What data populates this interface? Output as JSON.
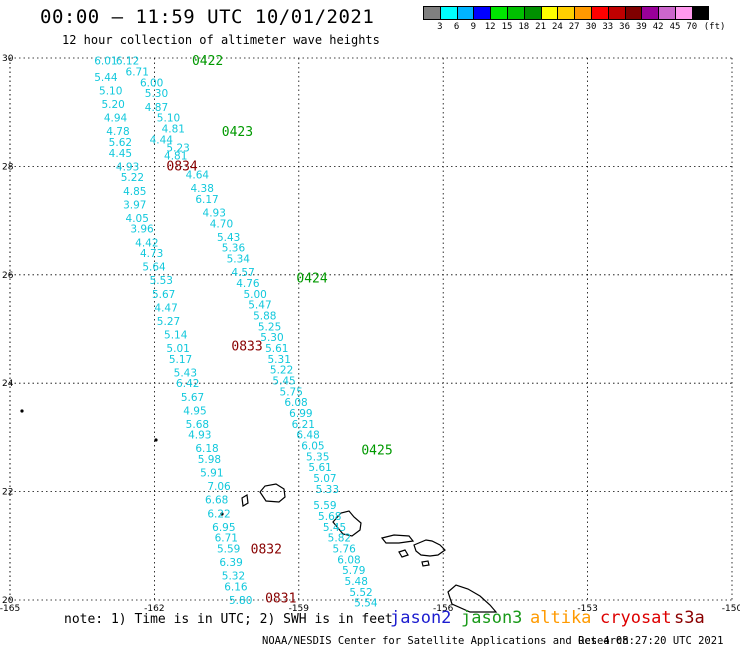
{
  "header": {
    "title": "00:00 – 11:59 UTC 10/01/2021",
    "subtitle": "12 hour collection of altimeter wave heights"
  },
  "colorbar": {
    "colors": [
      "#808080",
      "#00ffff",
      "#00b4ff",
      "#0000ff",
      "#00e600",
      "#00c000",
      "#009000",
      "#ffff00",
      "#ffd000",
      "#ff9900",
      "#ff0000",
      "#c00000",
      "#800000",
      "#990099",
      "#cc66cc",
      "#ff99ee",
      "#000000"
    ],
    "labels": [
      "3",
      "6",
      "9",
      "12",
      "15",
      "18",
      "21",
      "24",
      "27",
      "30",
      "33",
      "36",
      "39",
      "42",
      "45",
      "70",
      "(ft)"
    ]
  },
  "map": {
    "lat_labels": [
      "30",
      "28",
      "26",
      "24",
      "22",
      "20"
    ],
    "lon_labels": [
      "-165",
      "-162",
      "-159",
      "-156",
      "-153",
      "-150"
    ],
    "lat_range": [
      20,
      30
    ],
    "lon_range": [
      -165,
      -150
    ],
    "time_labels": [
      {
        "text": "0422",
        "lon": -161.22,
        "lat": 29.96,
        "color": "#009900"
      },
      {
        "text": "0423",
        "lon": -160.6,
        "lat": 28.65,
        "color": "#009900"
      },
      {
        "text": "0834",
        "lon": -161.75,
        "lat": 28.02,
        "color": "#880000"
      },
      {
        "text": "0424",
        "lon": -159.05,
        "lat": 25.95,
        "color": "#009900"
      },
      {
        "text": "0833",
        "lon": -160.4,
        "lat": 24.7,
        "color": "#880000"
      },
      {
        "text": "0425",
        "lon": -157.7,
        "lat": 22.78,
        "color": "#009900"
      },
      {
        "text": "0832",
        "lon": -160.0,
        "lat": 20.95,
        "color": "#880000"
      },
      {
        "text": "0831",
        "lon": -159.7,
        "lat": 20.05,
        "color": "#880000"
      }
    ],
    "track_0834": [
      {
        "v": "6.01",
        "lon": -163.25,
        "lat": 29.95
      },
      {
        "v": "6.12",
        "lon": -162.8,
        "lat": 29.95
      },
      {
        "v": "6.71",
        "lon": -162.6,
        "lat": 29.75
      },
      {
        "v": "5.44",
        "lon": -163.25,
        "lat": 29.65
      },
      {
        "v": "6.00",
        "lon": -162.3,
        "lat": 29.55
      },
      {
        "v": "5.10",
        "lon": -163.15,
        "lat": 29.4
      },
      {
        "v": "5.30",
        "lon": -162.2,
        "lat": 29.35
      },
      {
        "v": "5.20",
        "lon": -163.1,
        "lat": 29.15
      },
      {
        "v": "4.87",
        "lon": -162.2,
        "lat": 29.1
      },
      {
        "v": "4.94",
        "lon": -163.05,
        "lat": 28.9
      },
      {
        "v": "5.10",
        "lon": -161.95,
        "lat": 28.9
      },
      {
        "v": "4.78",
        "lon": -163.0,
        "lat": 28.65
      },
      {
        "v": "4.81",
        "lon": -161.85,
        "lat": 28.7
      },
      {
        "v": "4.44",
        "lon": -162.1,
        "lat": 28.5
      },
      {
        "v": "5.62",
        "lon": -162.95,
        "lat": 28.45
      },
      {
        "v": "5.23",
        "lon": -161.75,
        "lat": 28.35
      },
      {
        "v": "4.45",
        "lon": -162.95,
        "lat": 28.25
      },
      {
        "v": "4.81",
        "lon": -161.8,
        "lat": 28.2
      },
      {
        "v": "4.93",
        "lon": -162.8,
        "lat": 28.0
      },
      {
        "v": "5.22",
        "lon": -162.7,
        "lat": 27.8
      },
      {
        "v": "4.85",
        "lon": -162.65,
        "lat": 27.55
      },
      {
        "v": "3.97",
        "lon": -162.65,
        "lat": 27.3
      },
      {
        "v": "4.05",
        "lon": -162.6,
        "lat": 27.05
      },
      {
        "v": "3.96",
        "lon": -162.5,
        "lat": 26.85
      },
      {
        "v": "4.42",
        "lon": -162.4,
        "lat": 26.6
      },
      {
        "v": "4.73",
        "lon": -162.3,
        "lat": 26.4
      },
      {
        "v": "5.64",
        "lon": -162.25,
        "lat": 26.15
      },
      {
        "v": "5.53",
        "lon": -162.1,
        "lat": 25.9
      },
      {
        "v": "5.67",
        "lon": -162.05,
        "lat": 25.65
      },
      {
        "v": "4.47",
        "lon": -162.0,
        "lat": 25.4
      },
      {
        "v": "5.27",
        "lon": -161.95,
        "lat": 25.15
      },
      {
        "v": "5.14",
        "lon": -161.8,
        "lat": 24.9
      },
      {
        "v": "5.01",
        "lon": -161.75,
        "lat": 24.65
      },
      {
        "v": "5.17",
        "lon": -161.7,
        "lat": 24.45
      },
      {
        "v": "5.43",
        "lon": -161.6,
        "lat": 24.2
      },
      {
        "v": "6.42",
        "lon": -161.55,
        "lat": 24.0
      },
      {
        "v": "5.67",
        "lon": -161.45,
        "lat": 23.75
      },
      {
        "v": "4.95",
        "lon": -161.4,
        "lat": 23.5
      },
      {
        "v": "5.68",
        "lon": -161.35,
        "lat": 23.25
      },
      {
        "v": "4.93",
        "lon": -161.3,
        "lat": 23.05
      },
      {
        "v": "6.18",
        "lon": -161.15,
        "lat": 22.8
      },
      {
        "v": "5.98",
        "lon": -161.1,
        "lat": 22.6
      },
      {
        "v": "5.91",
        "lon": -161.05,
        "lat": 22.35
      },
      {
        "v": "7.06",
        "lon": -160.9,
        "lat": 22.1
      },
      {
        "v": "6.68",
        "lon": -160.95,
        "lat": 21.85
      },
      {
        "v": "6.22",
        "lon": -160.9,
        "lat": 21.6
      },
      {
        "v": "6.95",
        "lon": -160.8,
        "lat": 21.35
      },
      {
        "v": "6.71",
        "lon": -160.75,
        "lat": 21.15
      },
      {
        "v": "5.59",
        "lon": -160.7,
        "lat": 20.95
      },
      {
        "v": "6.39",
        "lon": -160.65,
        "lat": 20.7
      },
      {
        "v": "5.32",
        "lon": -160.6,
        "lat": 20.45
      },
      {
        "v": "6.16",
        "lon": -160.55,
        "lat": 20.25
      },
      {
        "v": "5.80",
        "lon": -160.45,
        "lat": 20.0
      }
    ],
    "track_0422": [
      {
        "v": "4.64",
        "lon": -161.35,
        "lat": 27.85
      },
      {
        "v": "4.38",
        "lon": -161.25,
        "lat": 27.6
      },
      {
        "v": "6.17",
        "lon": -161.15,
        "lat": 27.4
      },
      {
        "v": "4.93",
        "lon": -161.0,
        "lat": 27.15
      },
      {
        "v": "4.70",
        "lon": -160.85,
        "lat": 26.95
      },
      {
        "v": "5.43",
        "lon": -160.7,
        "lat": 26.7
      },
      {
        "v": "5.36",
        "lon": -160.6,
        "lat": 26.5
      },
      {
        "v": "5.34",
        "lon": -160.5,
        "lat": 26.3
      },
      {
        "v": "4.57",
        "lon": -160.4,
        "lat": 26.05
      },
      {
        "v": "4.76",
        "lon": -160.3,
        "lat": 25.85
      },
      {
        "v": "5.00",
        "lon": -160.15,
        "lat": 25.65
      },
      {
        "v": "5.47",
        "lon": -160.05,
        "lat": 25.45
      },
      {
        "v": "5.88",
        "lon": -159.95,
        "lat": 25.25
      },
      {
        "v": "5.25",
        "lon": -159.85,
        "lat": 25.05
      },
      {
        "v": "5.30",
        "lon": -159.8,
        "lat": 24.85
      },
      {
        "v": "5.61",
        "lon": -159.7,
        "lat": 24.65
      },
      {
        "v": "5.31",
        "lon": -159.65,
        "lat": 24.45
      },
      {
        "v": "5.22",
        "lon": -159.6,
        "lat": 24.25
      },
      {
        "v": "5.45",
        "lon": -159.55,
        "lat": 24.05
      },
      {
        "v": "5.75",
        "lon": -159.4,
        "lat": 23.85
      },
      {
        "v": "6.08",
        "lon": -159.3,
        "lat": 23.65
      },
      {
        "v": "6.99",
        "lon": -159.2,
        "lat": 23.45
      },
      {
        "v": "6.21",
        "lon": -159.15,
        "lat": 23.25
      },
      {
        "v": "6.48",
        "lon": -159.05,
        "lat": 23.05
      },
      {
        "v": "6.05",
        "lon": -158.95,
        "lat": 22.85
      },
      {
        "v": "5.35",
        "lon": -158.85,
        "lat": 22.65
      },
      {
        "v": "5.61",
        "lon": -158.8,
        "lat": 22.45
      },
      {
        "v": "5.07",
        "lon": -158.7,
        "lat": 22.25
      },
      {
        "v": "5.33",
        "lon": -158.65,
        "lat": 22.05
      },
      {
        "v": "5.59",
        "lon": -158.7,
        "lat": 21.75
      },
      {
        "v": "5.68",
        "lon": -158.6,
        "lat": 21.55
      },
      {
        "v": "5.45",
        "lon": -158.5,
        "lat": 21.35
      },
      {
        "v": "5.82",
        "lon": -158.4,
        "lat": 21.15
      },
      {
        "v": "5.76",
        "lon": -158.3,
        "lat": 20.95
      },
      {
        "v": "6.08",
        "lon": -158.2,
        "lat": 20.75
      },
      {
        "v": "5.79",
        "lon": -158.1,
        "lat": 20.55
      },
      {
        "v": "5.48",
        "lon": -158.05,
        "lat": 20.35
      },
      {
        "v": "5.52",
        "lon": -157.95,
        "lat": 20.15
      },
      {
        "v": "5.54",
        "lon": -157.85,
        "lat": 19.95
      }
    ]
  },
  "footer": {
    "note": "note: 1) Time is in UTC; 2) SWH is in feet",
    "missions": [
      "jason2",
      "jason3",
      "altika",
      "cryosat",
      "s3a"
    ],
    "credit": "NOAA/NESDIS Center for Satellite Applications and Research",
    "timestamp": "Oct  4 08:27:20 UTC 2021"
  }
}
